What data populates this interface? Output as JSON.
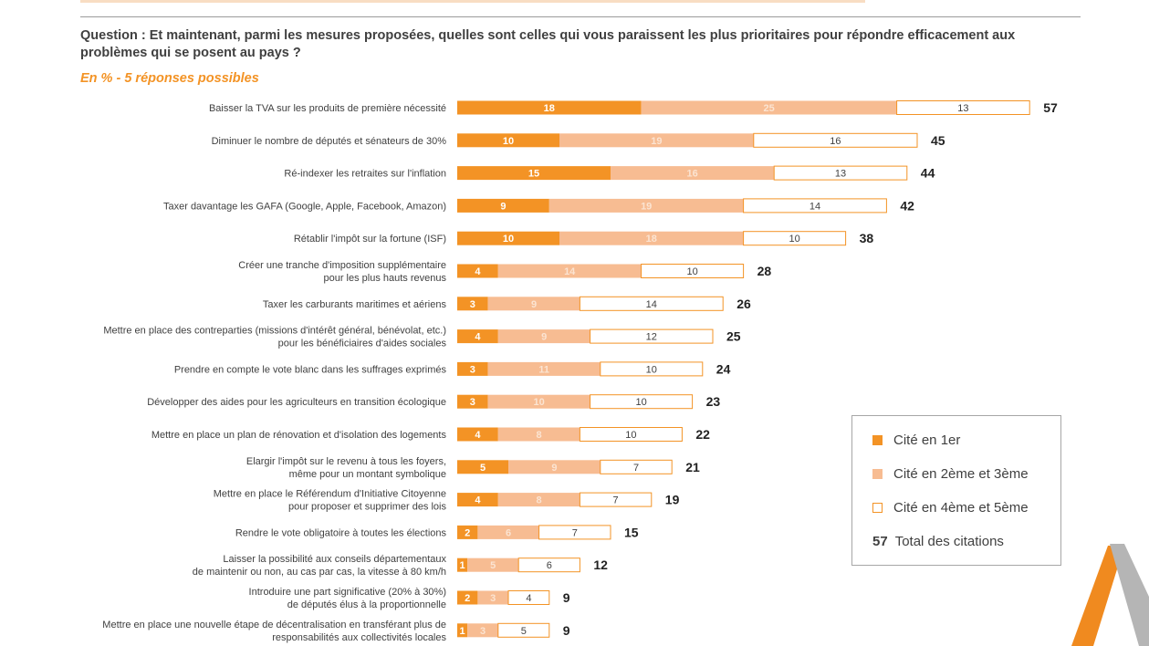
{
  "question": "Question : Et maintenant, parmi les mesures proposées, quelles sont celles qui vous paraissent les plus prioritaires pour répondre efficacement aux problèmes qui se posent au pays ?",
  "subtitle": "En % - 5 réponses possibles",
  "legend": {
    "first": "Cité en 1er",
    "second": "Cité en 2ème et 3ème",
    "third": "Cité en 4ème et 5ème",
    "total_num": "57",
    "total_label": "Total des citations"
  },
  "colors": {
    "first": "#f39325",
    "second": "#f7bc92",
    "third": "#ffffff",
    "third_border": "#f39325",
    "text": "#404040"
  },
  "chart_data": {
    "type": "bar",
    "orientation": "horizontal",
    "stacked": true,
    "series": [
      {
        "name": "Cité en 1er",
        "values": [
          18,
          10,
          15,
          9,
          10,
          4,
          3,
          4,
          3,
          3,
          4,
          5,
          4,
          2,
          1,
          2,
          1
        ]
      },
      {
        "name": "Cité en 2ème et 3ème",
        "values": [
          25,
          19,
          16,
          19,
          18,
          14,
          9,
          9,
          11,
          10,
          8,
          9,
          8,
          6,
          5,
          3,
          3
        ]
      },
      {
        "name": "Cité en 4ème et 5ème",
        "values": [
          13,
          16,
          13,
          14,
          10,
          10,
          14,
          12,
          10,
          10,
          10,
          7,
          7,
          7,
          6,
          4,
          5
        ]
      }
    ],
    "totals": [
      57,
      45,
      44,
      42,
      38,
      28,
      26,
      25,
      24,
      23,
      22,
      21,
      19,
      15,
      12,
      9,
      9
    ],
    "categories": [
      [
        "Baisser la TVA sur les produits de première nécessité"
      ],
      [
        "Diminuer le nombre de députés et sénateurs de 30%"
      ],
      [
        "Ré-indexer les retraites sur l'inflation"
      ],
      [
        "Taxer davantage les GAFA (Google, Apple, Facebook, Amazon)"
      ],
      [
        "Rétablir l'impôt sur la fortune (ISF)"
      ],
      [
        "Créer une tranche d'imposition supplémentaire",
        "pour les plus hauts revenus"
      ],
      [
        "Taxer les carburants maritimes et aériens"
      ],
      [
        "Mettre en place des contreparties (missions d'intérêt général, bénévolat, etc.)",
        "pour les bénéficiaires d'aides sociales"
      ],
      [
        "Prendre en compte le vote blanc dans les suffrages exprimés"
      ],
      [
        "Développer des aides pour les agriculteurs en transition écologique"
      ],
      [
        "Mettre en place un plan de rénovation et d'isolation des logements"
      ],
      [
        "Elargir l'impôt sur le revenu à tous les foyers,",
        "même pour un montant symbolique"
      ],
      [
        "Mettre en place le Référendum d'Initiative Citoyenne",
        "pour proposer et supprimer des lois"
      ],
      [
        "Rendre le vote obligatoire à toutes les élections"
      ],
      [
        "Laisser la possibilité aux conseils départementaux",
        "de maintenir ou non, au cas par cas, la vitesse à 80 km/h"
      ],
      [
        "Introduire une part significative (20% à 30%)",
        "de députés élus à la proportionnelle"
      ],
      [
        "Mettre en place une nouvelle étape de décentralisation en transférant plus de",
        "responsabilités aux collectivités locales"
      ]
    ],
    "unit": "%"
  }
}
